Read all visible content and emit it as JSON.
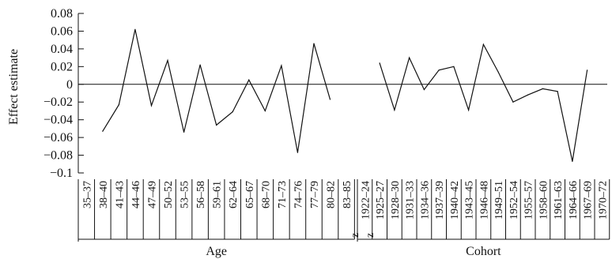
{
  "chart_data": {
    "type": "line",
    "title": "",
    "xlabel": "",
    "ylabel": "Effect estimate",
    "ylim": [
      -0.1,
      0.08
    ],
    "yticks": [
      0.08,
      0.06,
      0.04,
      0.02,
      0,
      -0.02,
      -0.04,
      -0.06,
      -0.08,
      -0.1
    ],
    "ytick_labels": [
      "0.08",
      "0.06",
      "0.04",
      "0.02",
      "0",
      "−0.02",
      "−0.04",
      "−0.06",
      "−0.08",
      "−0.1"
    ],
    "grid": false,
    "legend": "none",
    "line_color": "#111111",
    "groups": [
      {
        "name": "Age",
        "categories": [
          "35–37",
          "38–40",
          "41–43",
          "44–46",
          "47–49",
          "50–52",
          "53–55",
          "56–58",
          "59–61",
          "62–64",
          "65–67",
          "68–70",
          "71–73",
          "74–76",
          "77–79",
          "80–82",
          "83–85"
        ],
        "values": [
          null,
          -0.053,
          -0.023,
          0.062,
          -0.024,
          0.027,
          -0.054,
          0.022,
          -0.046,
          -0.031,
          0.005,
          -0.03,
          0.021,
          -0.077,
          0.046,
          -0.017,
          null
        ]
      },
      {
        "name": "Cohort",
        "categories": [
          "1922–24",
          "1925–27",
          "1928–30",
          "1931–33",
          "1934–36",
          "1937–39",
          "1940–42",
          "1943–45",
          "1946–48",
          "1949–51",
          "1952–54",
          "1955–57",
          "1958–60",
          "1961–63",
          "1964–66",
          "1967–69",
          "1970–72"
        ],
        "markers": [
          "z",
          "z",
          "",
          "",
          "",
          "",
          "",
          "",
          "",
          "",
          "",
          "",
          "",
          "",
          "",
          "",
          ""
        ],
        "values": [
          null,
          0.024,
          -0.029,
          0.03,
          -0.006,
          0.016,
          0.02,
          -0.029,
          0.045,
          0.014,
          -0.02,
          -0.012,
          -0.005,
          -0.008,
          -0.087,
          0.016,
          null
        ]
      }
    ]
  }
}
